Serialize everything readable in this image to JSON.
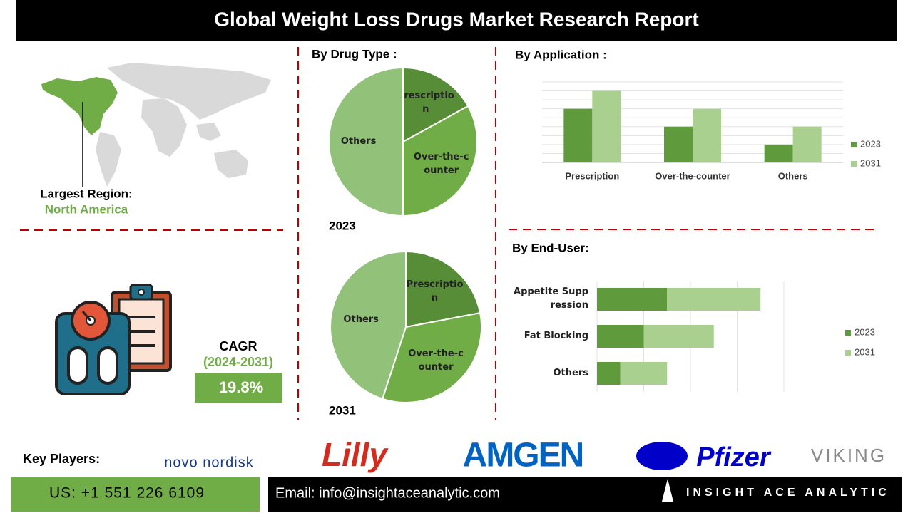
{
  "header": {
    "title": "Global Weight Loss Drugs Market Research Report"
  },
  "region": {
    "label": "Largest Region:",
    "value": "North America"
  },
  "cagr": {
    "label": "CAGR",
    "period": "(2024-2031)",
    "value": "19.8%"
  },
  "drug_type_title": "By Drug Type :",
  "chart_data": [
    {
      "type": "pie",
      "title": "2023",
      "categories": [
        "Prescription",
        "Over-the-counter",
        "Others"
      ],
      "values": [
        17,
        33,
        50
      ],
      "colors": [
        "#578d36",
        "#70ad47",
        "#92c17a"
      ]
    },
    {
      "type": "pie",
      "title": "2031",
      "categories": [
        "Prescription",
        "Over-the-counter",
        "Others"
      ],
      "values": [
        22,
        33,
        45
      ],
      "colors": [
        "#578d36",
        "#70ad47",
        "#92c17a"
      ]
    },
    {
      "type": "bar",
      "title": "By Application :",
      "categories": [
        "Prescription",
        "Over-the-counter",
        "Others"
      ],
      "series": [
        {
          "name": "2023",
          "color": "#5f9b3d",
          "values": [
            6,
            4,
            2
          ]
        },
        {
          "name": "2031",
          "color": "#a9d08e",
          "values": [
            8,
            6,
            4
          ]
        }
      ],
      "ylim": [
        0,
        9
      ],
      "grid": true,
      "legend": "right"
    },
    {
      "type": "hbar_stacked",
      "title": "By End-User:",
      "categories": [
        "Appetite Suppression",
        "Fat Blocking",
        "Others"
      ],
      "series": [
        {
          "name": "2023",
          "color": "#5f9b3d",
          "values": [
            1.5,
            1,
            0.5
          ]
        },
        {
          "name": "2031",
          "color": "#a9d08e",
          "values": [
            2,
            1.5,
            1
          ]
        }
      ],
      "xlim": [
        0,
        4
      ],
      "grid": true,
      "legend": "right"
    }
  ],
  "key_players": {
    "label": "Key Players:",
    "companies": [
      "novo nordisk",
      "Lilly",
      "AMGEN",
      "Pfizer",
      "VIKING"
    ]
  },
  "footer": {
    "phone": "US: +1 551 226 6109",
    "email": "Email: info@insightaceanalytic.com",
    "brand": "INSIGHT ACE ANALYTIC"
  }
}
